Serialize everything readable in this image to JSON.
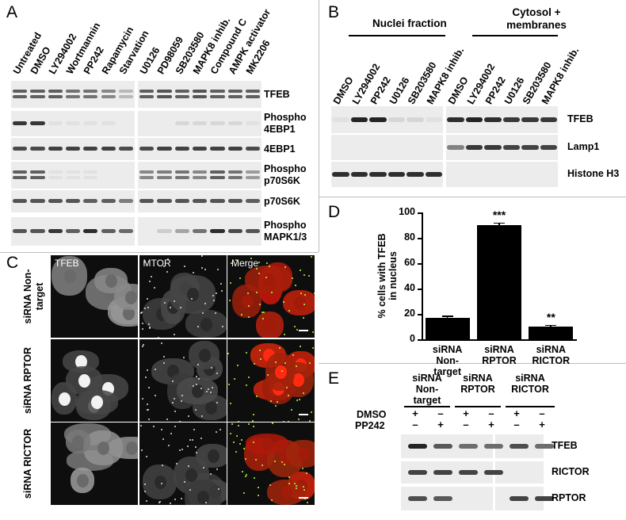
{
  "panels": {
    "a": "A",
    "b": "B",
    "c": "C",
    "d": "D",
    "e": "E"
  },
  "panel_a": {
    "lanes": [
      "Untreated",
      "DMSO",
      "LY294002",
      "Wortmannin",
      "PP242",
      "Rapamycin",
      "Starvation",
      "U0126",
      "PD98059",
      "SB203580",
      "MAPK8 inhib.",
      "Compound C",
      "AMPK activator",
      "MK2206"
    ],
    "rows": [
      "TFEB",
      "Phospho 4EBP1",
      "4EBP1",
      "Phospho p70S6K",
      "p70S6K",
      "Phospho MAPK1/3"
    ],
    "row_lines": [
      [
        "TFEB"
      ],
      [
        "Phospho",
        "4EBP1"
      ],
      [
        "4EBP1"
      ],
      [
        "Phospho",
        "p70S6K"
      ],
      [
        "p70S6K"
      ],
      [
        "Phospho",
        "MAPK1/3"
      ]
    ]
  },
  "panel_b": {
    "group_nuclei": "Nuclei fraction",
    "group_cytosol_line1": "Cytosol +",
    "group_cytosol_line2": "membranes",
    "lanes": [
      "DMSO",
      "LY294002",
      "PP242",
      "U0126",
      "SB203580",
      "MAPK8 inhib.",
      "DMSO",
      "LY294002",
      "PP242",
      "U0126",
      "SB203580",
      "MAPK8 inhib."
    ],
    "rows": [
      "TFEB",
      "Lamp1",
      "Histone H3"
    ]
  },
  "panel_c": {
    "columns": [
      "TFEB",
      "MTOR",
      "Merge"
    ],
    "rows": [
      {
        "line1": "siRNA Non-",
        "line2": "target"
      },
      {
        "line1": "siRNA RPTOR",
        "line2": ""
      },
      {
        "line1": "siRNA RICTOR",
        "line2": ""
      }
    ]
  },
  "chart_data": {
    "type": "bar",
    "ylabel_line1": "% cells with TFEB",
    "ylabel_line2": "in nucleus",
    "ylim": [
      0,
      100
    ],
    "yticks": [
      0,
      20,
      40,
      60,
      80,
      100
    ],
    "categories": [
      "siRNA Non-target",
      "siRNA RPTOR",
      "siRNA RICTOR"
    ],
    "category_lines": [
      [
        "siRNA",
        "Non-",
        "target"
      ],
      [
        "siRNA",
        "RPTOR"
      ],
      [
        "siRNA",
        "RICTOR"
      ]
    ],
    "values": [
      17,
      90,
      10
    ],
    "errors": [
      1.5,
      2,
      1.5
    ],
    "significance": [
      "",
      "***",
      "**"
    ],
    "bar_color": "#000000"
  },
  "panel_e": {
    "groups": [
      {
        "line1": "siRNA",
        "line2": "Non-",
        "line3": "target"
      },
      {
        "line1": "siRNA",
        "line2": "RPTOR",
        "line3": ""
      },
      {
        "line1": "siRNA",
        "line2": "RICTOR",
        "line3": ""
      }
    ],
    "treatments": [
      "DMSO",
      "PP242"
    ],
    "dmso_signs": [
      "+",
      "–",
      "+",
      "–",
      "+",
      "–"
    ],
    "pp242_signs": [
      "–",
      "+",
      "–",
      "+",
      "–",
      "+"
    ],
    "rows": [
      "TFEB",
      "RICTOR",
      "RPTOR"
    ]
  }
}
